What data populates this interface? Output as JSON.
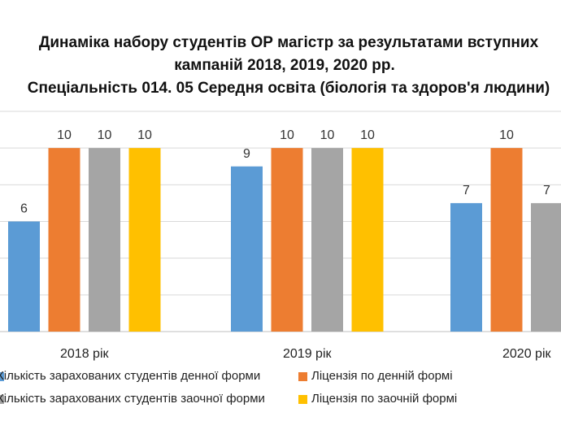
{
  "chart_data": {
    "type": "bar",
    "title_lines": [
      "Динаміка набору студентів ОР магістр за результатами вступних",
      "кампаній 2018, 2019, 2020 рр.",
      "Спеціальність 014. 05  Середня освіта (біологія та здоров'я людини)"
    ],
    "categories": [
      "2018 рік",
      "2019 рік",
      "2020 рік"
    ],
    "series": [
      {
        "name": "Кількість зарахованих студентів денної форми",
        "color": "#5B9BD5",
        "values": [
          6,
          9,
          7
        ]
      },
      {
        "name": "Ліцензія по денній формі",
        "color": "#ED7D31",
        "values": [
          10,
          10,
          10
        ]
      },
      {
        "name": "Кількість зарахованих студентів заочної форми",
        "color": "#A5A5A5",
        "values": [
          10,
          10,
          7
        ]
      },
      {
        "name": "Ліцензія по заочній формі",
        "color": "#FFC000",
        "values": [
          10,
          10,
          null
        ]
      }
    ],
    "ylim": [
      0,
      12
    ],
    "grid": true,
    "legend_position": "bottom",
    "xlabel": "",
    "ylabel": ""
  }
}
